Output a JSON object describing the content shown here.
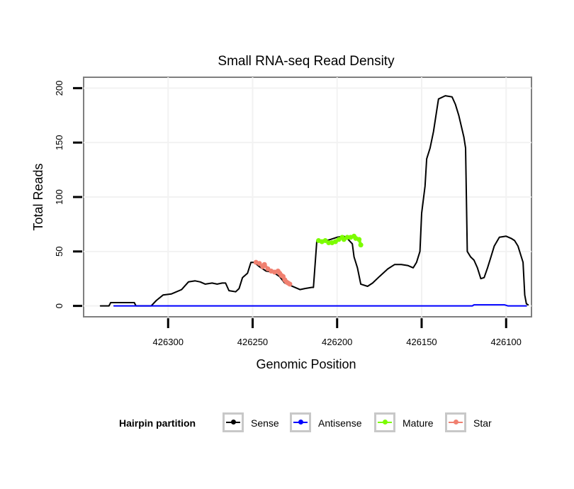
{
  "chart_data": {
    "type": "line",
    "title": "Small RNA-seq Read Density",
    "xlabel": "Genomic Position",
    "ylabel": "Total Reads",
    "x_reversed": true,
    "xlim": [
      426350,
      426085
    ],
    "ylim": [
      -10,
      210
    ],
    "xticks": [
      426300,
      426250,
      426200,
      426150,
      426100
    ],
    "yticks": [
      0,
      50,
      100,
      150,
      200
    ],
    "legend_title": "Hairpin partition",
    "legend_position": "bottom",
    "series": [
      {
        "name": "Sense",
        "color": "#000000",
        "points": [
          [
            426340,
            0
          ],
          [
            426335,
            0
          ],
          [
            426334,
            3
          ],
          [
            426320,
            3
          ],
          [
            426319,
            0
          ],
          [
            426310,
            0
          ],
          [
            426307,
            5
          ],
          [
            426303,
            10
          ],
          [
            426298,
            11
          ],
          [
            426292,
            15
          ],
          [
            426288,
            22
          ],
          [
            426284,
            23
          ],
          [
            426281,
            22
          ],
          [
            426278,
            20
          ],
          [
            426274,
            21
          ],
          [
            426271,
            20
          ],
          [
            426268,
            21
          ],
          [
            426266,
            21
          ],
          [
            426264,
            14
          ],
          [
            426260,
            13
          ],
          [
            426258,
            16
          ],
          [
            426256,
            26
          ],
          [
            426253,
            30
          ],
          [
            426251,
            40
          ],
          [
            426249,
            40
          ],
          [
            426246,
            36
          ],
          [
            426242,
            32
          ],
          [
            426238,
            31
          ],
          [
            426234,
            27
          ],
          [
            426231,
            21
          ],
          [
            426228,
            19
          ],
          [
            426222,
            15
          ],
          [
            426219,
            16
          ],
          [
            426215,
            17
          ],
          [
            426214,
            17
          ],
          [
            426212,
            60
          ],
          [
            426208,
            59
          ],
          [
            426204,
            61
          ],
          [
            426200,
            63
          ],
          [
            426196,
            64
          ],
          [
            426194,
            62
          ],
          [
            426191,
            57
          ],
          [
            426190,
            45
          ],
          [
            426188,
            35
          ],
          [
            426186,
            20
          ],
          [
            426182,
            18
          ],
          [
            426179,
            21
          ],
          [
            426175,
            27
          ],
          [
            426170,
            34
          ],
          [
            426166,
            38
          ],
          [
            426162,
            38
          ],
          [
            426158,
            37
          ],
          [
            426155,
            35
          ],
          [
            426153,
            40
          ],
          [
            426151,
            50
          ],
          [
            426150,
            85
          ],
          [
            426148,
            110
          ],
          [
            426147,
            135
          ],
          [
            426145,
            145
          ],
          [
            426143,
            160
          ],
          [
            426141,
            180
          ],
          [
            426140,
            190
          ],
          [
            426136,
            193
          ],
          [
            426132,
            192
          ],
          [
            426130,
            185
          ],
          [
            426128,
            175
          ],
          [
            426125,
            155
          ],
          [
            426124,
            145
          ],
          [
            426123,
            50
          ],
          [
            426121,
            45
          ],
          [
            426119,
            42
          ],
          [
            426117,
            35
          ],
          [
            426115,
            25
          ],
          [
            426113,
            26
          ],
          [
            426111,
            35
          ],
          [
            426109,
            45
          ],
          [
            426107,
            55
          ],
          [
            426104,
            63
          ],
          [
            426100,
            64
          ],
          [
            426097,
            62
          ],
          [
            426095,
            60
          ],
          [
            426093,
            55
          ],
          [
            426091,
            45
          ],
          [
            426090,
            40
          ],
          [
            426089,
            10
          ],
          [
            426088,
            2
          ],
          [
            426087,
            1
          ]
        ]
      },
      {
        "name": "Antisense",
        "color": "#0000ff",
        "points": [
          [
            426332,
            0
          ],
          [
            426120,
            0
          ],
          [
            426119,
            1
          ],
          [
            426101,
            1
          ],
          [
            426099,
            0
          ],
          [
            426088,
            0
          ]
        ]
      },
      {
        "name": "Mature",
        "color": "#7cfc00",
        "points": [
          [
            426211,
            60
          ],
          [
            426209,
            59
          ],
          [
            426207,
            60
          ],
          [
            426205,
            58
          ],
          [
            426203,
            58
          ],
          [
            426201,
            59
          ],
          [
            426199,
            61
          ],
          [
            426197,
            63
          ],
          [
            426196,
            61
          ],
          [
            426194,
            63
          ],
          [
            426192,
            63
          ],
          [
            426190,
            64
          ],
          [
            426189,
            62
          ],
          [
            426187,
            61
          ],
          [
            426186,
            56
          ]
        ]
      },
      {
        "name": "Star",
        "color": "#f08070",
        "points": [
          [
            426248,
            40
          ],
          [
            426246,
            39
          ],
          [
            426244,
            36
          ],
          [
            426243,
            38
          ],
          [
            426241,
            34
          ],
          [
            426239,
            32
          ],
          [
            426237,
            31
          ],
          [
            426235,
            32
          ],
          [
            426234,
            30
          ],
          [
            426233,
            28
          ],
          [
            426232,
            27
          ],
          [
            426231,
            24
          ],
          [
            426230,
            22
          ],
          [
            426229,
            21
          ],
          [
            426228,
            20
          ]
        ]
      }
    ]
  }
}
